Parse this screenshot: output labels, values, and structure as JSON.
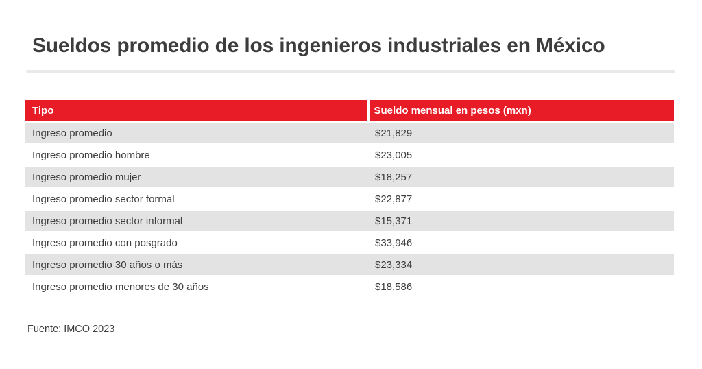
{
  "page": {
    "title": "Sueldos promedio de los ingenieros industriales en México",
    "source": "Fuente: IMCO 2023"
  },
  "colors": {
    "header_red": "#e81c26",
    "row_alt_gray": "#e3e3e3",
    "text_dark": "#3d3d3d",
    "divider_gray": "#e9e9e9"
  },
  "table": {
    "columns": [
      "Tipo",
      "Sueldo mensual en pesos (mxn)"
    ],
    "rows": [
      {
        "tipo": "Ingreso promedio",
        "sueldo": "$21,829"
      },
      {
        "tipo": "Ingreso promedio hombre",
        "sueldo": "$23,005"
      },
      {
        "tipo": "Ingreso promedio mujer",
        "sueldo": "$18,257"
      },
      {
        "tipo": "Ingreso promedio sector formal",
        "sueldo": "$22,877"
      },
      {
        "tipo": "Ingreso promedio sector informal",
        "sueldo": "$15,371"
      },
      {
        "tipo": "Ingreso promedio con posgrado",
        "sueldo": "$33,946"
      },
      {
        "tipo": "Ingreso promedio 30 años o más",
        "sueldo": "$23,334"
      },
      {
        "tipo": "Ingreso promedio menores de 30 años",
        "sueldo": "$18,586"
      }
    ]
  },
  "chart_data": {
    "type": "table",
    "title": "Sueldos promedio de los ingenieros industriales en México",
    "columns": [
      "Tipo",
      "Sueldo mensual en pesos (mxn)"
    ],
    "categories": [
      "Ingreso promedio",
      "Ingreso promedio hombre",
      "Ingreso promedio mujer",
      "Ingreso promedio sector formal",
      "Ingreso promedio sector informal",
      "Ingreso promedio con posgrado",
      "Ingreso promedio 30 años o más",
      "Ingreso promedio menores de 30 años"
    ],
    "values": [
      21829,
      23005,
      18257,
      22877,
      15371,
      33946,
      23334,
      18586
    ],
    "values_formatted": [
      "$21,829",
      "$23,005",
      "$18,257",
      "$22,877",
      "$15,371",
      "$33,946",
      "$23,334",
      "$18,586"
    ],
    "unit": "pesos mexicanos (mxn) mensuales",
    "source": "Fuente: IMCO 2023"
  }
}
